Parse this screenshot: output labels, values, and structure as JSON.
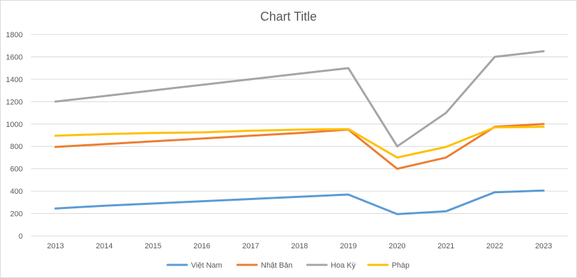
{
  "chart_data": {
    "type": "line",
    "title": "Chart Title",
    "xlabel": "",
    "ylabel": "",
    "categories": [
      "2013",
      "2014",
      "2015",
      "2016",
      "2017",
      "2018",
      "2019",
      "2020",
      "2021",
      "2022",
      "2023"
    ],
    "ylim": [
      0,
      1800
    ],
    "yticks": [
      0,
      200,
      400,
      600,
      800,
      1000,
      1200,
      1400,
      1600,
      1800
    ],
    "grid": true,
    "legend_position": "bottom",
    "series": [
      {
        "name": "Việt Nam",
        "color": "#5b9bd5",
        "values": [
          245,
          270,
          290,
          310,
          330,
          350,
          370,
          195,
          220,
          390,
          405
        ]
      },
      {
        "name": "Nhật Bản",
        "color": "#ed7d31",
        "values": [
          795,
          820,
          845,
          870,
          895,
          920,
          950,
          600,
          700,
          975,
          1000
        ]
      },
      {
        "name": "Hoa Kỳ",
        "color": "#a5a5a5",
        "values": [
          1200,
          1250,
          1300,
          1350,
          1400,
          1450,
          1500,
          800,
          1100,
          1600,
          1650
        ]
      },
      {
        "name": "Pháp",
        "color": "#ffc000",
        "values": [
          895,
          910,
          920,
          925,
          940,
          950,
          955,
          700,
          795,
          970,
          975
        ]
      }
    ]
  }
}
